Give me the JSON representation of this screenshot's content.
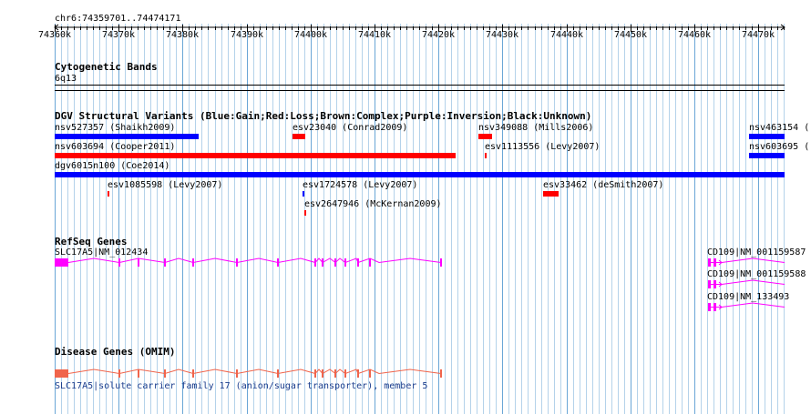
{
  "region": "chr6:74359701..74474171",
  "ruler": {
    "start": 74360000,
    "end": 74474171,
    "ticks": [
      "74360k",
      "74370k",
      "74380k",
      "74390k",
      "74400k",
      "74410k",
      "74420k",
      "74430k",
      "74440k",
      "74450k",
      "74460k",
      "74470k"
    ]
  },
  "tracks": {
    "cytogenetic": {
      "title": "Cytogenetic Bands",
      "band": "6q13"
    },
    "dgv": {
      "title": "DGV Structural Variants (Blue:Gain;Red:Loss;Brown:Complex;Purple:Inversion;Black:Unknown)",
      "variants": [
        {
          "label": "nsv527357 (Shaikh2009)",
          "type": "gain",
          "color": "#0000ff"
        },
        {
          "label": "esv23040 (Conrad2009)",
          "type": "loss",
          "color": "#ff0000"
        },
        {
          "label": "nsv349088 (Mills2006)",
          "type": "loss",
          "color": "#ff0000"
        },
        {
          "label": "nsv463154 (",
          "type": "gain",
          "color": "#0000ff"
        },
        {
          "label": "nsv603694 (Cooper2011)",
          "type": "loss",
          "color": "#ff0000"
        },
        {
          "label": "esv1113556 (Levy2007)",
          "type": "loss",
          "color": "#ff0000"
        },
        {
          "label": "nsv603695 (",
          "type": "gain",
          "color": "#0000ff"
        },
        {
          "label": "dgv6015n100 (Coe2014)",
          "type": "gain",
          "color": "#0000ff"
        },
        {
          "label": "esv1085598 (Levy2007)",
          "type": "loss",
          "color": "#ff0000"
        },
        {
          "label": "esv1724578 (Levy2007)",
          "type": "gain",
          "color": "#0000ff"
        },
        {
          "label": "esv33462 (deSmith2007)",
          "type": "loss",
          "color": "#ff0000"
        },
        {
          "label": "esv2647946 (McKernan2009)",
          "type": "loss",
          "color": "#ff0000"
        }
      ]
    },
    "refseq": {
      "title": "RefSeq Genes",
      "genes": [
        {
          "label": "SLC17A5|NM_012434",
          "color": "#ff00ff"
        },
        {
          "label": "CD109|NM_001159587",
          "color": "#ff00ff"
        },
        {
          "label": "CD109|NM_001159588",
          "color": "#ff00ff"
        },
        {
          "label": "CD109|NM_133493",
          "color": "#ff00ff"
        }
      ]
    },
    "disease": {
      "title": "Disease Genes (OMIM)",
      "gene": {
        "label": "SLC17A5|solute carrier family 17 (anion/sugar transporter), member 5",
        "color": "#f0644b",
        "text_color": "#1a3c8c"
      }
    }
  }
}
